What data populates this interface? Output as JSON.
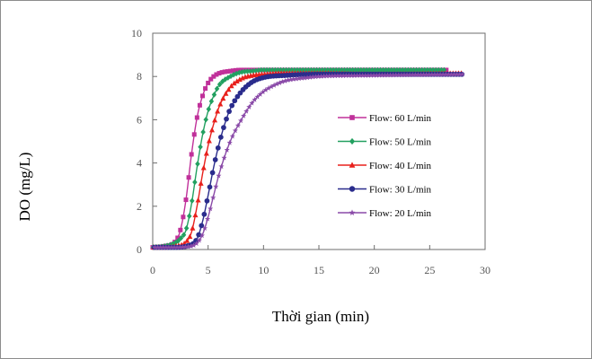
{
  "chart_data": {
    "type": "scatter",
    "title": "",
    "xlabel": "Thời gian (min)",
    "ylabel": "DO (mg/L)",
    "xlim": [
      0,
      30
    ],
    "ylim": [
      0,
      10
    ],
    "xticks": [
      0,
      5,
      10,
      15,
      20,
      25,
      30
    ],
    "yticks": [
      0,
      2,
      4,
      6,
      8,
      10
    ],
    "grid": false,
    "legend_position": "right",
    "series": [
      {
        "name": "Flow: 60 L/min",
        "color": "#c0309a",
        "marker": "square",
        "x": [
          0,
          1,
          2,
          2.5,
          3,
          3.5,
          4,
          4.5,
          5,
          5.5,
          6,
          7,
          8,
          10,
          15,
          20,
          26.5
        ],
        "y": [
          0.1,
          0.15,
          0.35,
          0.9,
          2.3,
          4.4,
          6.1,
          7.1,
          7.7,
          8.0,
          8.15,
          8.25,
          8.3,
          8.3,
          8.3,
          8.3,
          8.3
        ]
      },
      {
        "name": "Flow: 50 L/min",
        "color": "#22a060",
        "marker": "diamond",
        "x": [
          0,
          1,
          2,
          2.5,
          3,
          3.5,
          4,
          4.5,
          5,
          5.5,
          6,
          7,
          8,
          9,
          10,
          15,
          20,
          26.5
        ],
        "y": [
          0.1,
          0.15,
          0.3,
          0.5,
          0.9,
          2.1,
          3.8,
          5.3,
          6.4,
          7.1,
          7.6,
          8.0,
          8.2,
          8.25,
          8.3,
          8.3,
          8.3,
          8.3
        ]
      },
      {
        "name": "Flow: 40 L/min",
        "color": "#e8201c",
        "marker": "triangle",
        "x": [
          0,
          1,
          2,
          3,
          3.5,
          4,
          4.5,
          5,
          5.5,
          6,
          7,
          8,
          9,
          10,
          12,
          15,
          20,
          28
        ],
        "y": [
          0.1,
          0.1,
          0.15,
          0.35,
          0.8,
          2.0,
          3.5,
          4.8,
          5.8,
          6.6,
          7.5,
          7.9,
          8.05,
          8.1,
          8.15,
          8.15,
          8.1,
          8.15
        ]
      },
      {
        "name": "Flow: 30 L/min",
        "color": "#2a2c8c",
        "marker": "circle",
        "x": [
          0,
          1,
          2,
          3,
          4,
          4.5,
          5,
          5.5,
          6,
          6.5,
          7,
          8,
          9,
          10,
          12,
          15,
          20,
          28
        ],
        "y": [
          0.1,
          0.1,
          0.1,
          0.15,
          0.5,
          1.3,
          2.5,
          3.8,
          4.9,
          5.8,
          6.5,
          7.3,
          7.75,
          7.95,
          8.05,
          8.1,
          8.1,
          8.1
        ]
      },
      {
        "name": "Flow: 20 L/min",
        "color": "#8a4aa8",
        "marker": "star",
        "x": [
          0,
          1,
          2,
          3,
          4,
          4.5,
          5,
          5.5,
          6,
          7,
          8,
          9,
          10,
          11,
          12,
          14,
          15,
          20,
          28
        ],
        "y": [
          0.1,
          0.1,
          0.1,
          0.12,
          0.3,
          0.7,
          1.5,
          2.5,
          3.5,
          5.0,
          6.0,
          6.8,
          7.3,
          7.6,
          7.8,
          7.95,
          8.0,
          8.05,
          8.1
        ]
      }
    ]
  }
}
